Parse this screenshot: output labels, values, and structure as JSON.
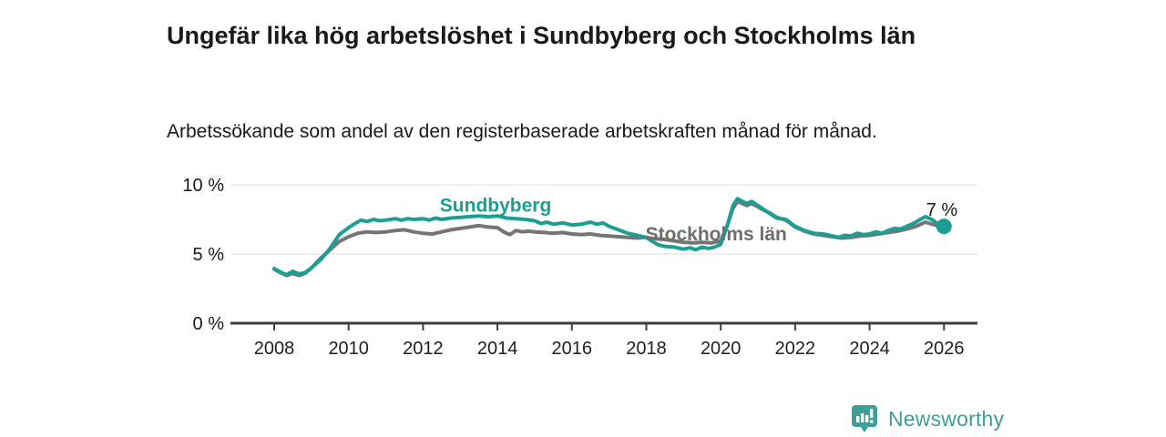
{
  "header": {
    "title": "Ungefär lika hög arbetslöshet i Sundbyberg och Stockholms län",
    "subtitle": "Arbetssökande som andel av den registerbaserade arbetskraften månad för månad."
  },
  "colors": {
    "teal": "#1d9e93",
    "gray": "#757575",
    "gray_label": "#6e6e6e",
    "axis": "#3d3d3d",
    "grid": "#e3e3e3",
    "text_dark": "#1a1a1a",
    "logo_teal": "#3f9e96"
  },
  "footer": {
    "brand": "Newsworthy",
    "logo_icon": "newsworthy-speech-bubble-bar-chart-icon"
  },
  "chart_data": {
    "type": "line",
    "title": "Ungefär lika hög arbetslöshet i Sundbyberg och Stockholms län",
    "xlabel": "",
    "ylabel": "",
    "xlim": [
      2007.75,
      2026.9
    ],
    "ylim": [
      0,
      10.5
    ],
    "grid": "horizontal",
    "legend_position": "inline-labels",
    "x_ticks": [
      2008,
      2010,
      2012,
      2014,
      2016,
      2018,
      2020,
      2022,
      2024,
      2026
    ],
    "y_ticks": [
      {
        "value": 0,
        "label": "0 %"
      },
      {
        "value": 5,
        "label": "5 %"
      },
      {
        "value": 10,
        "label": "10 %"
      }
    ],
    "annotation": {
      "text": "7 %",
      "x": 2025.52,
      "y": 7.75
    },
    "end_dot": {
      "series": "Sundbyberg",
      "x": 2026.0,
      "y": 7.0
    },
    "series": [
      {
        "name": "Stockholms län",
        "color": "#757575",
        "label": {
          "text": "Stockholms län",
          "x": 2017.98,
          "y": 6.0,
          "color": "#6e6e6e"
        },
        "points": [
          [
            2008.0,
            3.9
          ],
          [
            2008.17,
            3.65
          ],
          [
            2008.33,
            3.45
          ],
          [
            2008.5,
            3.6
          ],
          [
            2008.67,
            3.45
          ],
          [
            2008.83,
            3.6
          ],
          [
            2009.0,
            4.0
          ],
          [
            2009.25,
            4.7
          ],
          [
            2009.5,
            5.3
          ],
          [
            2009.75,
            5.9
          ],
          [
            2010.0,
            6.25
          ],
          [
            2010.25,
            6.5
          ],
          [
            2010.5,
            6.6
          ],
          [
            2010.75,
            6.55
          ],
          [
            2011.0,
            6.6
          ],
          [
            2011.25,
            6.7
          ],
          [
            2011.5,
            6.75
          ],
          [
            2011.75,
            6.6
          ],
          [
            2012.0,
            6.5
          ],
          [
            2012.25,
            6.45
          ],
          [
            2012.5,
            6.6
          ],
          [
            2012.75,
            6.75
          ],
          [
            2013.0,
            6.85
          ],
          [
            2013.25,
            6.95
          ],
          [
            2013.5,
            7.05
          ],
          [
            2013.75,
            6.95
          ],
          [
            2014.0,
            6.9
          ],
          [
            2014.17,
            6.6
          ],
          [
            2014.33,
            6.4
          ],
          [
            2014.5,
            6.7
          ],
          [
            2014.67,
            6.6
          ],
          [
            2014.83,
            6.65
          ],
          [
            2015.0,
            6.6
          ],
          [
            2015.25,
            6.55
          ],
          [
            2015.5,
            6.5
          ],
          [
            2015.75,
            6.55
          ],
          [
            2016.0,
            6.45
          ],
          [
            2016.25,
            6.4
          ],
          [
            2016.5,
            6.45
          ],
          [
            2016.75,
            6.35
          ],
          [
            2017.0,
            6.3
          ],
          [
            2017.25,
            6.25
          ],
          [
            2017.5,
            6.2
          ],
          [
            2017.75,
            6.15
          ],
          [
            2018.0,
            6.2
          ],
          [
            2018.25,
            6.1
          ],
          [
            2018.5,
            6.05
          ],
          [
            2018.75,
            5.95
          ],
          [
            2019.0,
            5.85
          ],
          [
            2019.25,
            5.8
          ],
          [
            2019.5,
            5.85
          ],
          [
            2019.75,
            5.8
          ],
          [
            2020.0,
            5.95
          ],
          [
            2020.17,
            7.0
          ],
          [
            2020.33,
            8.3
          ],
          [
            2020.45,
            8.8
          ],
          [
            2020.58,
            8.65
          ],
          [
            2020.7,
            8.5
          ],
          [
            2020.83,
            8.65
          ],
          [
            2021.0,
            8.4
          ],
          [
            2021.17,
            8.15
          ],
          [
            2021.33,
            7.95
          ],
          [
            2021.5,
            7.65
          ],
          [
            2021.75,
            7.45
          ],
          [
            2022.0,
            6.95
          ],
          [
            2022.25,
            6.65
          ],
          [
            2022.5,
            6.45
          ],
          [
            2022.75,
            6.35
          ],
          [
            2023.0,
            6.25
          ],
          [
            2023.25,
            6.15
          ],
          [
            2023.5,
            6.2
          ],
          [
            2023.75,
            6.3
          ],
          [
            2024.0,
            6.35
          ],
          [
            2024.25,
            6.45
          ],
          [
            2024.5,
            6.55
          ],
          [
            2024.75,
            6.65
          ],
          [
            2025.0,
            6.8
          ],
          [
            2025.25,
            7.0
          ],
          [
            2025.5,
            7.3
          ],
          [
            2025.75,
            7.1
          ],
          [
            2026.0,
            6.9
          ]
        ]
      },
      {
        "name": "Sundbyberg",
        "color": "#1d9e93",
        "label": {
          "text": "Sundbyberg",
          "x": 2012.45,
          "y": 8.05,
          "color": "#1d9e93"
        },
        "points": [
          [
            2008.0,
            3.95
          ],
          [
            2008.17,
            3.7
          ],
          [
            2008.33,
            3.5
          ],
          [
            2008.5,
            3.75
          ],
          [
            2008.67,
            3.55
          ],
          [
            2008.83,
            3.65
          ],
          [
            2009.0,
            4.0
          ],
          [
            2009.25,
            4.6
          ],
          [
            2009.5,
            5.4
          ],
          [
            2009.75,
            6.4
          ],
          [
            2010.0,
            6.9
          ],
          [
            2010.17,
            7.2
          ],
          [
            2010.33,
            7.45
          ],
          [
            2010.5,
            7.35
          ],
          [
            2010.67,
            7.5
          ],
          [
            2010.83,
            7.4
          ],
          [
            2011.0,
            7.45
          ],
          [
            2011.25,
            7.55
          ],
          [
            2011.42,
            7.45
          ],
          [
            2011.58,
            7.55
          ],
          [
            2011.75,
            7.5
          ],
          [
            2012.0,
            7.55
          ],
          [
            2012.17,
            7.45
          ],
          [
            2012.33,
            7.6
          ],
          [
            2012.5,
            7.5
          ],
          [
            2012.75,
            7.6
          ],
          [
            2013.0,
            7.65
          ],
          [
            2013.25,
            7.7
          ],
          [
            2013.5,
            7.75
          ],
          [
            2013.75,
            7.7
          ],
          [
            2014.0,
            7.75
          ],
          [
            2014.25,
            7.6
          ],
          [
            2014.5,
            7.55
          ],
          [
            2014.75,
            7.5
          ],
          [
            2015.0,
            7.4
          ],
          [
            2015.17,
            7.2
          ],
          [
            2015.33,
            7.3
          ],
          [
            2015.5,
            7.15
          ],
          [
            2015.75,
            7.25
          ],
          [
            2016.0,
            7.1
          ],
          [
            2016.25,
            7.15
          ],
          [
            2016.5,
            7.3
          ],
          [
            2016.67,
            7.15
          ],
          [
            2016.83,
            7.25
          ],
          [
            2017.0,
            7.0
          ],
          [
            2017.25,
            6.75
          ],
          [
            2017.5,
            6.5
          ],
          [
            2017.75,
            6.35
          ],
          [
            2018.0,
            6.2
          ],
          [
            2018.17,
            5.9
          ],
          [
            2018.33,
            5.65
          ],
          [
            2018.5,
            5.55
          ],
          [
            2018.75,
            5.5
          ],
          [
            2019.0,
            5.35
          ],
          [
            2019.17,
            5.45
          ],
          [
            2019.33,
            5.3
          ],
          [
            2019.5,
            5.5
          ],
          [
            2019.67,
            5.4
          ],
          [
            2019.83,
            5.5
          ],
          [
            2020.0,
            5.7
          ],
          [
            2020.17,
            7.0
          ],
          [
            2020.33,
            8.5
          ],
          [
            2020.45,
            9.0
          ],
          [
            2020.58,
            8.8
          ],
          [
            2020.7,
            8.65
          ],
          [
            2020.83,
            8.8
          ],
          [
            2021.0,
            8.5
          ],
          [
            2021.17,
            8.2
          ],
          [
            2021.33,
            7.9
          ],
          [
            2021.5,
            7.6
          ],
          [
            2021.75,
            7.5
          ],
          [
            2022.0,
            7.0
          ],
          [
            2022.25,
            6.7
          ],
          [
            2022.5,
            6.5
          ],
          [
            2022.75,
            6.45
          ],
          [
            2023.0,
            6.3
          ],
          [
            2023.17,
            6.2
          ],
          [
            2023.33,
            6.35
          ],
          [
            2023.5,
            6.3
          ],
          [
            2023.67,
            6.5
          ],
          [
            2023.83,
            6.4
          ],
          [
            2024.0,
            6.45
          ],
          [
            2024.17,
            6.6
          ],
          [
            2024.33,
            6.5
          ],
          [
            2024.5,
            6.7
          ],
          [
            2024.67,
            6.85
          ],
          [
            2024.83,
            6.8
          ],
          [
            2025.0,
            7.0
          ],
          [
            2025.17,
            7.2
          ],
          [
            2025.33,
            7.45
          ],
          [
            2025.5,
            7.7
          ],
          [
            2025.67,
            7.5
          ],
          [
            2025.83,
            7.2
          ],
          [
            2026.0,
            7.0
          ]
        ]
      }
    ]
  }
}
